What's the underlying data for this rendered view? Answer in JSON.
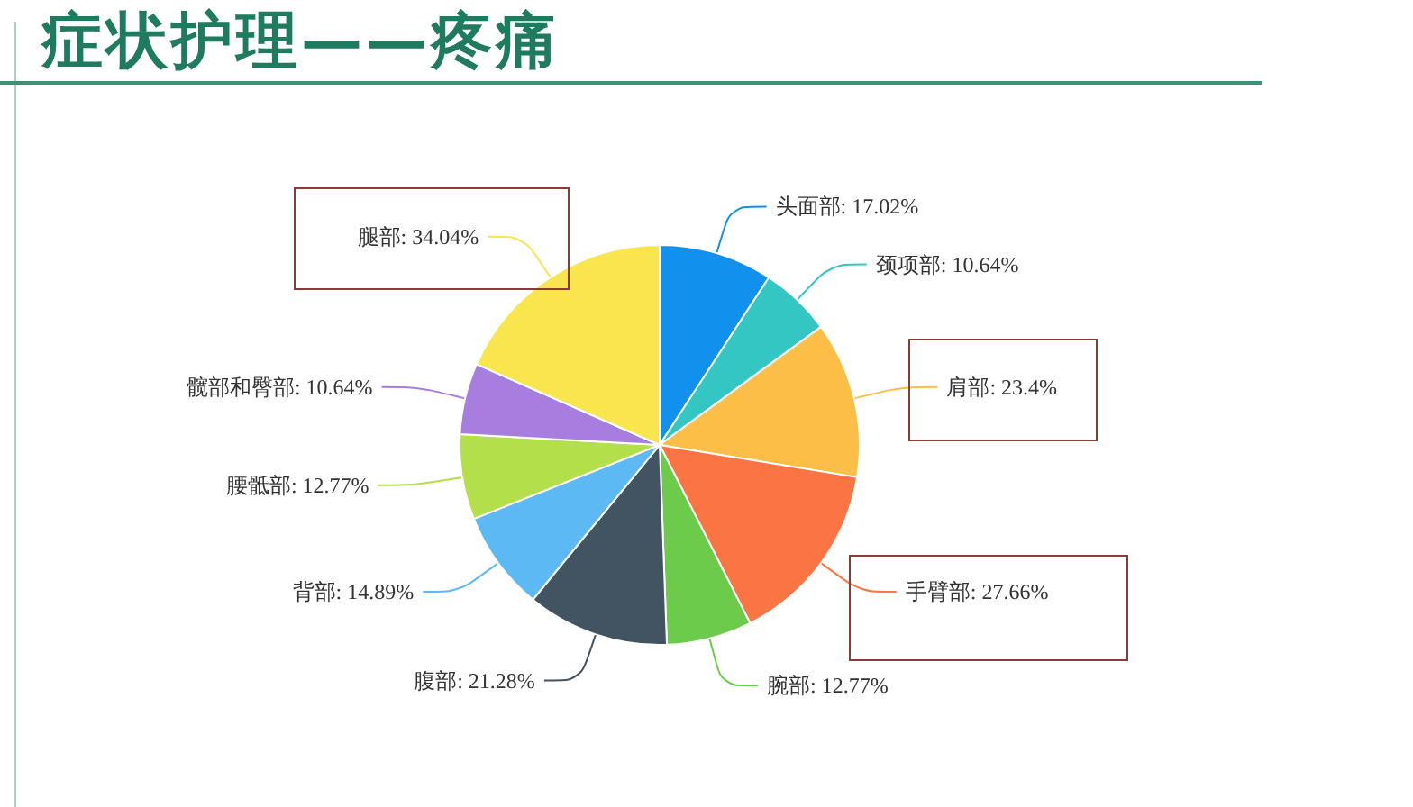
{
  "chart_data": {
    "type": "pie",
    "title": "症状护理——疼痛",
    "categories": [
      "头面部",
      "颈项部",
      "肩部",
      "手臂部",
      "腕部",
      "腹部",
      "背部",
      "腰骶部",
      "髋部和臀部",
      "腿部"
    ],
    "values": [
      17.02,
      10.64,
      23.4,
      27.66,
      12.77,
      21.28,
      14.89,
      12.77,
      10.64,
      34.04
    ],
    "value_labels": [
      "17.02%",
      "10.64%",
      "23.4%",
      "27.66%",
      "12.77%",
      "21.28%",
      "14.89%",
      "12.77%",
      "10.64%",
      "34.04%"
    ],
    "colors": [
      "#1190ec",
      "#33c6c2",
      "#fbbf47",
      "#fb7444",
      "#6ccb4b",
      "#425462",
      "#5cb9f4",
      "#b3df4b",
      "#a77ddf",
      "#f9e64e"
    ]
  }
}
